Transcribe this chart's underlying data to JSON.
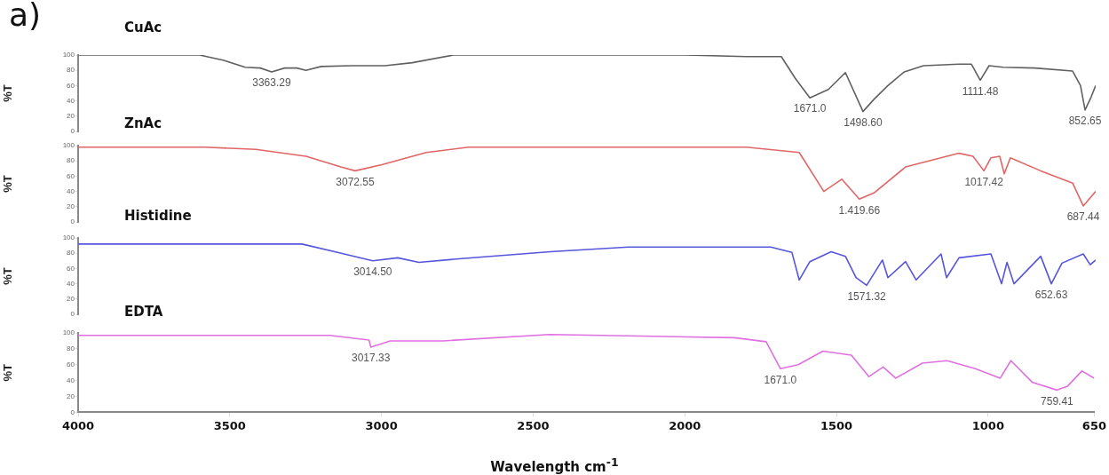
{
  "chart_data": [
    {
      "type": "line",
      "title": "CuAc",
      "ylabel": "%T",
      "xlim": [
        4000,
        650
      ],
      "ylim": [
        0,
        100
      ],
      "yticks": [
        0,
        20,
        40,
        60,
        80,
        100
      ],
      "tick_labels": "y",
      "grid": false,
      "legend": false,
      "annotations": [
        "a)",
        {
          "text": "3363.29",
          "x": 3363,
          "y": 78
        },
        {
          "text": "1671.0",
          "x": 1591,
          "y": 44
        },
        {
          "text": "1498.60",
          "x": 1416,
          "y": 26
        },
        {
          "text": "1111.48",
          "x": 1030,
          "y": 67
        },
        {
          "text": "852.65",
          "x": 685,
          "y": 28
        }
      ],
      "series": [
        {
          "color": "#606060",
          "x": [
            4000,
            3600,
            3520,
            3450,
            3400,
            3363,
            3320,
            3280,
            3250,
            3200,
            3100,
            2990,
            2900,
            2765,
            2400,
            2000,
            1800,
            1685,
            1640,
            1591,
            1530,
            1474,
            1416,
            1380,
            1334,
            1280,
            1217,
            1100,
            1059,
            1030,
            1001,
            954,
            850,
            726,
            700,
            685,
            665,
            650
          ],
          "values": [
            100,
            100,
            93,
            84,
            83,
            78,
            83,
            83,
            80,
            85,
            86,
            86,
            90,
            100,
            100,
            100,
            98,
            98,
            70,
            44,
            55,
            77,
            26,
            42,
            60,
            78,
            86,
            88,
            88,
            67,
            86,
            84,
            83,
            79,
            60,
            28,
            45,
            60
          ]
        }
      ]
    },
    {
      "type": "line",
      "title": "ZnAc",
      "ylabel": "%T",
      "xlim": [
        4000,
        650
      ],
      "ylim": [
        0,
        100
      ],
      "yticks": [
        0,
        20,
        40,
        60,
        80,
        100
      ],
      "tick_labels": "y",
      "grid": false,
      "legend": false,
      "annotations": [
        {
          "text": "3072.55",
          "x": 3088,
          "y": 67
        },
        {
          "text": "1.419.66",
          "x": 1428,
          "y": 30
        },
        {
          "text": "1017.42",
          "x": 1018,
          "y": 67
        },
        {
          "text": "687.44",
          "x": 691,
          "y": 21
        }
      ],
      "series": [
        {
          "color": "#e06666",
          "x": [
            4000,
            3585,
            3415,
            3250,
            3135,
            3088,
            3000,
            2854,
            2714,
            2400,
            2000,
            1800,
            1626,
            1545,
            1486,
            1428,
            1380,
            1276,
            1100,
            1054,
            1018,
            995,
            966,
            951,
            931,
            831,
            726,
            691,
            650
          ],
          "values": [
            98,
            98,
            95,
            86,
            72,
            67,
            75,
            91,
            98,
            98,
            98,
            98,
            91,
            40,
            56,
            30,
            38,
            72,
            90,
            86,
            67,
            84,
            86,
            63,
            84,
            67,
            51,
            21,
            40
          ]
        }
      ]
    },
    {
      "type": "line",
      "title": "Histidine",
      "ylabel": "%T",
      "xlim": [
        4000,
        650
      ],
      "ylim": [
        0,
        100
      ],
      "yticks": [
        0,
        20,
        40,
        60,
        80,
        100
      ],
      "tick_labels": "y",
      "grid": false,
      "legend": false,
      "annotations": [
        {
          "text": "3014.50",
          "x": 3030,
          "y": 70
        },
        {
          "text": "1571.32",
          "x": 1404,
          "y": 38
        },
        {
          "text": "652.63",
          "x": 796,
          "y": 40
        }
      ],
      "series": [
        {
          "color": "#5555dd",
          "x": [
            4000,
            3263,
            3146,
            3030,
            2948,
            2878,
            2737,
            2445,
            2188,
            1720,
            1650,
            1626,
            1591,
            1521,
            1474,
            1439,
            1404,
            1352,
            1334,
            1276,
            1241,
            1159,
            1141,
            1100,
            995,
            960,
            942,
            919,
            831,
            796,
            761,
            691,
            668,
            650
          ],
          "values": [
            92,
            92,
            81,
            70,
            74,
            68,
            73,
            82,
            88,
            88,
            81,
            45,
            69,
            82,
            76,
            48,
            38,
            71,
            48,
            69,
            45,
            79,
            48,
            74,
            79,
            40,
            68,
            40,
            76,
            40,
            67,
            79,
            65,
            71
          ]
        }
      ]
    },
    {
      "type": "line",
      "title": "EDTA",
      "ylabel": "%T",
      "xlabel": "Wavelength cm$^{-1}$",
      "xlim": [
        4000,
        650
      ],
      "xticks": [
        4000,
        3500,
        3000,
        2500,
        2000,
        1500,
        1000,
        650
      ],
      "ylim": [
        0,
        100
      ],
      "yticks": [
        0,
        20,
        40,
        60,
        80,
        100
      ],
      "grid": false,
      "legend": false,
      "annotations": [
        {
          "text": "3017.33",
          "x": 3035,
          "y": 82
        },
        {
          "text": "1671.0",
          "x": 1685,
          "y": 55
        },
        {
          "text": "759.41",
          "x": 773,
          "y": 28
        }
      ],
      "series": [
        {
          "color": "#e070e0",
          "x": [
            4000,
            3170,
            3041,
            3035,
            2971,
            2796,
            2445,
            1837,
            1732,
            1685,
            1626,
            1545,
            1451,
            1393,
            1346,
            1305,
            1217,
            1135,
            1042,
            960,
            925,
            855,
            773,
            738,
            691,
            650
          ],
          "values": [
            97,
            97,
            91,
            82,
            90,
            90,
            98,
            94,
            89,
            55,
            60,
            77,
            72,
            45,
            57,
            43,
            62,
            65,
            55,
            43,
            65,
            38,
            28,
            33,
            52,
            43
          ]
        }
      ]
    }
  ]
}
